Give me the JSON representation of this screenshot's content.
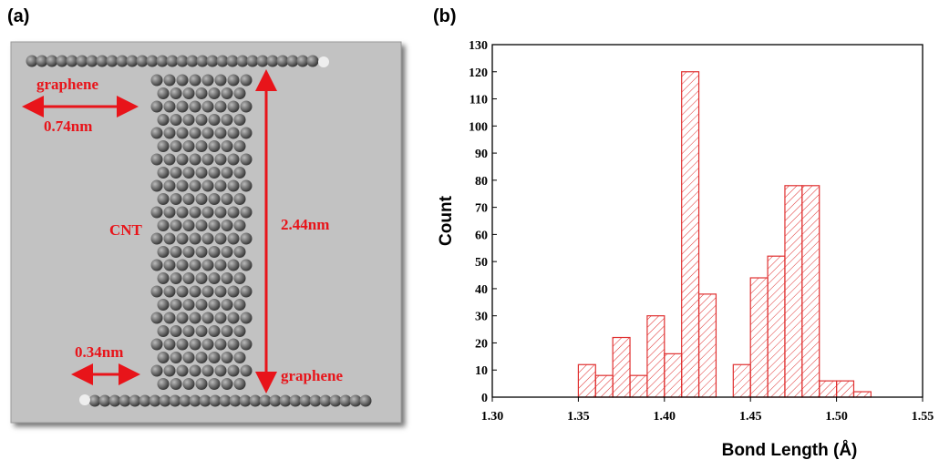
{
  "panel_a": {
    "label": "(a)",
    "annotations": [
      "graphene",
      "0.74nm",
      "CNT",
      "2.44nm",
      "0.34nm",
      "graphene"
    ]
  },
  "chart_data": {
    "type": "histogram",
    "panel_label": "(b)",
    "x_label": "Bond Length (Å)",
    "y_label": "Count",
    "bins": [
      1.35,
      1.36,
      1.37,
      1.38,
      1.39,
      1.4,
      1.41,
      1.42,
      1.43,
      1.44,
      1.45,
      1.46,
      1.47,
      1.48,
      1.49,
      1.5,
      1.51,
      1.52
    ],
    "counts": [
      12,
      8,
      22,
      8,
      30,
      16,
      120,
      38,
      0,
      12,
      44,
      52,
      78,
      78,
      6,
      6,
      2
    ],
    "color": "#e03030",
    "xlim": [
      1.3,
      1.55
    ],
    "xticks": [
      {
        "value": 1.3,
        "label": "1.30"
      },
      1.35,
      {
        "value": 1.4,
        "label": "1.40"
      },
      1.45,
      {
        "value": 1.5,
        "label": "1.50"
      },
      1.55
    ],
    "ylim": [
      0,
      130
    ],
    "yticks": [
      0,
      10,
      20,
      30,
      40,
      50,
      60,
      70,
      80,
      90,
      100,
      110,
      120,
      130
    ]
  }
}
